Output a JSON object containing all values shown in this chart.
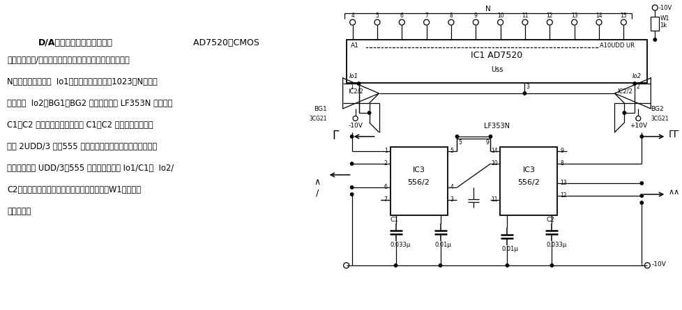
{
  "bg_color": "#ffffff",
  "fig_width": 9.79,
  "fig_height": 4.45,
  "dpi": 100,
  "left_title_bold": "D/A转换双相互补频率发生器",
  "left_title_normal": "   AD7520是CMOS",
  "left_body": [
    "型十位多路数/模转换集成电路，可提供与十位数字输入量",
    "N成正比的输出电流  Io1，还可提供与差值（1023－N）成正",
    "比的电流  Io2，BG1、BG2 及宽带双运放 LF353N 为电容器",
    "C1、C2 提供充电电流。当电容 C1、C2 上的电压达到阈值",
    "电平 2UDD/3 时，555 复位，电容器通过基片内相应的放电",
    "管放电，直至 UDD/3，555 又置位，分别以 Io1/C1、  Io2/",
    "C2的速率重新充电。左右两侧输出频率互补，W1用于调节",
    "频率范围。"
  ],
  "pin_labels": [
    "4",
    "5",
    "6",
    "7",
    "8",
    "9",
    "10",
    "11",
    "12",
    "13",
    "14",
    "15"
  ],
  "ic1_label": "IC1 AD7520",
  "ic3_label": "IC3\n556/2",
  "lf353n": "LF353N",
  "neg10v": "-10V",
  "pos10v": "+10V",
  "w1_label": "W1",
  "w1_res": "1k",
  "n_label": "N",
  "a1_label": "A1",
  "a10_label": "A10UDD UR",
  "uss_label": "Uss",
  "c1_label": "C1",
  "c2_label": "C2",
  "c1_val": "0.033μ",
  "c2_val": "0.033μ",
  "cmid1_val": "0.01μ",
  "cmid2_val": "0.01μ"
}
